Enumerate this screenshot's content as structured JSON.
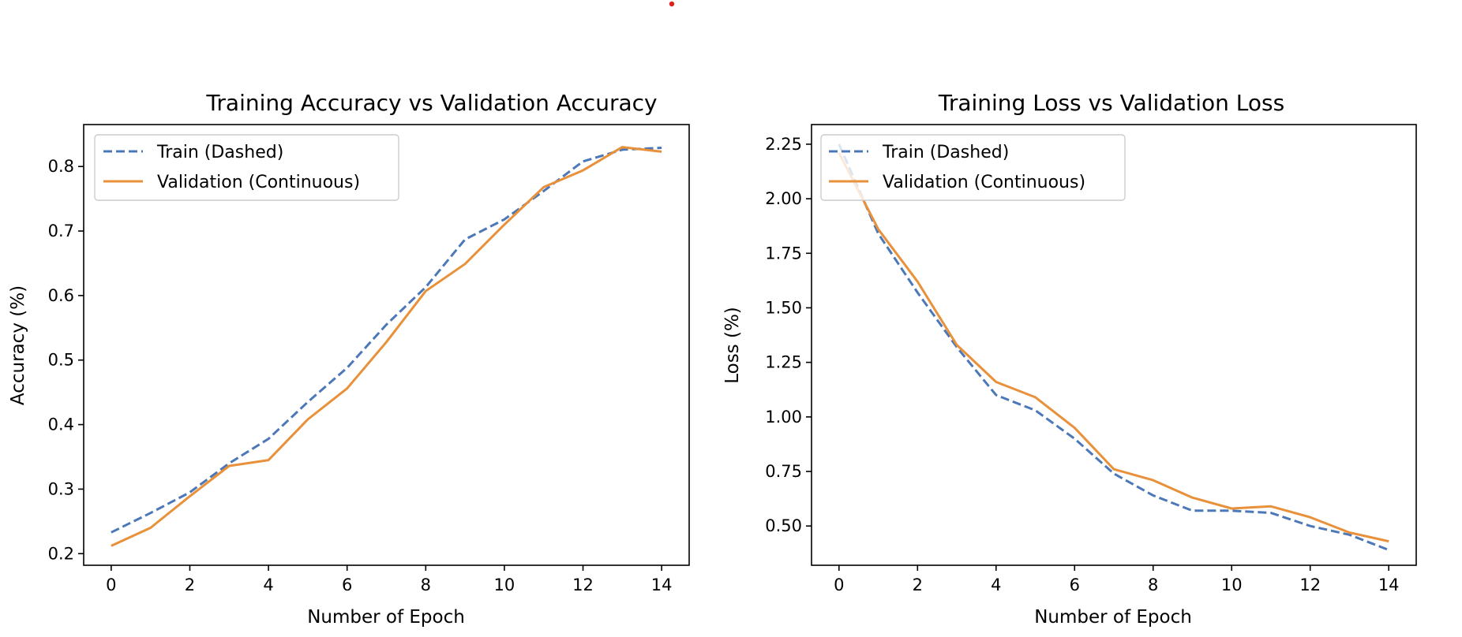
{
  "chart_data": [
    {
      "type": "line",
      "title": "Training Accuracy vs Validation Accuracy",
      "xlabel": "Number of Epoch",
      "ylabel": "Accuracy (%)",
      "xlim": [
        -0.7,
        14.7
      ],
      "ylim": [
        0.182,
        0.865
      ],
      "xticks": [
        0,
        2,
        4,
        6,
        8,
        10,
        12,
        14
      ],
      "yticks": [
        0.2,
        0.3,
        0.4,
        0.5,
        0.6,
        0.7,
        0.8
      ],
      "ytick_labels": [
        "0.2",
        "0.3",
        "0.4",
        "0.5",
        "0.6",
        "0.7",
        "0.8"
      ],
      "grid": false,
      "legend": "upper-left",
      "x": [
        0,
        1,
        2,
        3,
        4,
        5,
        6,
        7,
        8,
        9,
        10,
        11,
        12,
        13,
        14
      ],
      "series": [
        {
          "name": "Train (Dashed)",
          "style": "dashed",
          "color": "#4c78b8",
          "values": [
            0.233,
            0.263,
            0.295,
            0.34,
            0.378,
            0.435,
            0.488,
            0.555,
            0.613,
            0.687,
            0.718,
            0.762,
            0.808,
            0.826,
            0.829
          ]
        },
        {
          "name": "Validation (Continuous)",
          "style": "solid",
          "color": "#e8913a",
          "values": [
            0.212,
            0.24,
            0.289,
            0.336,
            0.345,
            0.408,
            0.456,
            0.528,
            0.607,
            0.649,
            0.71,
            0.768,
            0.794,
            0.83,
            0.823
          ]
        }
      ]
    },
    {
      "type": "line",
      "title": "Training Loss vs Validation Loss",
      "xlabel": "Number of Epoch",
      "ylabel": "Loss (%)",
      "xlim": [
        -0.7,
        14.7
      ],
      "ylim": [
        0.32,
        2.34
      ],
      "xticks": [
        0,
        2,
        4,
        6,
        8,
        10,
        12,
        14
      ],
      "yticks": [
        0.5,
        0.75,
        1.0,
        1.25,
        1.5,
        1.75,
        2.0,
        2.25
      ],
      "ytick_labels": [
        "0.50",
        "0.75",
        "1.00",
        "1.25",
        "1.50",
        "1.75",
        "2.00",
        "2.25"
      ],
      "grid": false,
      "legend": "upper-left",
      "x": [
        0,
        1,
        2,
        3,
        4,
        5,
        6,
        7,
        8,
        9,
        10,
        11,
        12,
        13,
        14
      ],
      "series": [
        {
          "name": "Train (Dashed)",
          "style": "dashed",
          "color": "#4c78b8",
          "values": [
            2.25,
            1.84,
            1.57,
            1.32,
            1.1,
            1.03,
            0.9,
            0.74,
            0.64,
            0.57,
            0.57,
            0.56,
            0.5,
            0.46,
            0.39
          ]
        },
        {
          "name": "Validation (Continuous)",
          "style": "solid",
          "color": "#e8913a",
          "values": [
            2.21,
            1.86,
            1.62,
            1.33,
            1.16,
            1.09,
            0.95,
            0.76,
            0.71,
            0.63,
            0.58,
            0.59,
            0.54,
            0.47,
            0.43
          ]
        }
      ]
    }
  ]
}
